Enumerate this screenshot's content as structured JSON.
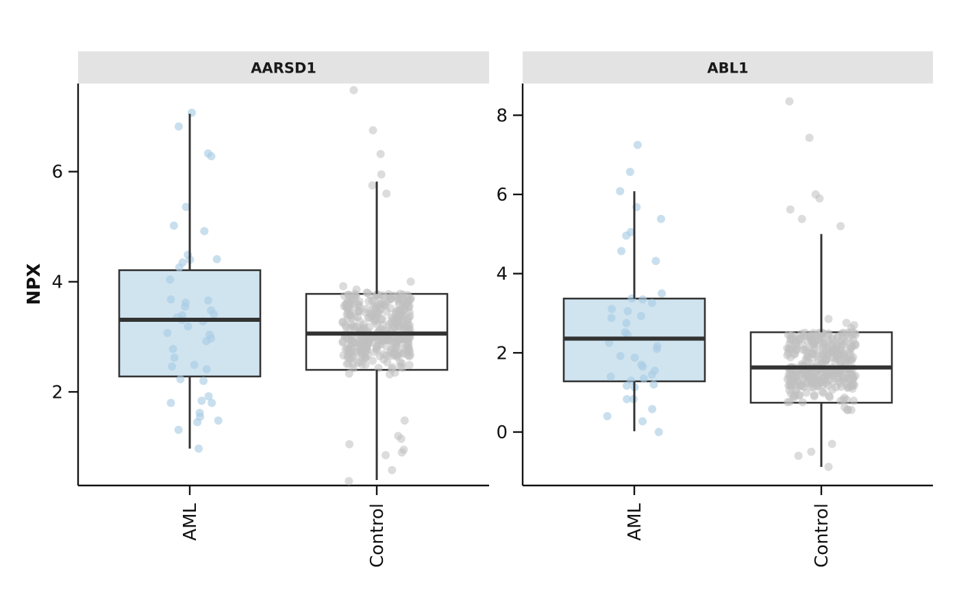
{
  "chart_data": {
    "type": "boxplot",
    "ylabel": "NPX",
    "xlabel": "",
    "categories": [
      "AML",
      "Control"
    ],
    "colors": {
      "AML": "#d0e4f0",
      "Control": "#ffffff",
      "AML_points": "#a8cce4",
      "Control_points": "#c0c0c0",
      "strip": "#e3e3e3",
      "box_line": "#333333"
    },
    "panels": [
      {
        "title": "AARSD1",
        "ylim": [
          0.3,
          7.6
        ],
        "yticks": [
          2,
          4,
          6
        ],
        "groups": [
          {
            "name": "AML",
            "q1": 2.28,
            "median": 3.31,
            "q3": 4.21,
            "whisker_low": 0.97,
            "whisker_high": 7.05,
            "points": [
              0.97,
              1.31,
              1.45,
              1.48,
              1.55,
              1.62,
              1.8,
              1.8,
              1.84,
              1.92,
              2.2,
              2.23,
              2.41,
              2.46,
              2.49,
              2.62,
              2.78,
              2.92,
              2.97,
              3.04,
              3.07,
              3.19,
              3.28,
              3.31,
              3.35,
              3.39,
              3.41,
              3.48,
              3.55,
              3.62,
              3.66,
              3.68,
              4.04,
              4.26,
              4.35,
              4.4,
              4.41,
              4.49,
              4.92,
              5.02,
              5.36,
              6.28,
              6.33,
              6.82,
              7.07
            ]
          },
          {
            "name": "Control",
            "q1": 2.4,
            "median": 3.06,
            "q3": 3.78,
            "whisker_low": 0.4,
            "whisker_high": 5.82,
            "summary_points": [
              0.38,
              0.58,
              0.85,
              0.9,
              0.95,
              1.05,
              1.15,
              1.2,
              1.48,
              5.6,
              5.75,
              5.95,
              6.32,
              6.75,
              7.48
            ]
          }
        ]
      },
      {
        "title": "ABL1",
        "ylim": [
          -1.35,
          8.8
        ],
        "yticks": [
          0,
          2,
          4,
          6,
          8
        ],
        "groups": [
          {
            "name": "AML",
            "q1": 1.28,
            "median": 2.36,
            "q3": 3.37,
            "whisker_low": 0.02,
            "whisker_high": 6.08,
            "points": [
              0.0,
              0.27,
              0.4,
              0.58,
              0.83,
              0.83,
              1.13,
              1.17,
              1.2,
              1.3,
              1.35,
              1.4,
              1.45,
              1.55,
              1.65,
              1.7,
              1.88,
              1.92,
              2.1,
              2.17,
              2.25,
              2.47,
              2.52,
              2.75,
              2.88,
              2.93,
              3.05,
              3.11,
              3.26,
              3.35,
              3.37,
              3.5,
              4.32,
              4.57,
              4.96,
              5.05,
              5.38,
              5.68,
              6.08,
              6.57,
              7.25
            ]
          },
          {
            "name": "Control",
            "q1": 0.74,
            "median": 1.63,
            "q3": 2.52,
            "whisker_low": -0.88,
            "whisker_high": 5.0,
            "summary_points": [
              -0.88,
              -0.6,
              -0.5,
              -0.3,
              5.2,
              5.38,
              5.62,
              5.9,
              6.0,
              7.43,
              8.35
            ]
          }
        ]
      }
    ]
  }
}
